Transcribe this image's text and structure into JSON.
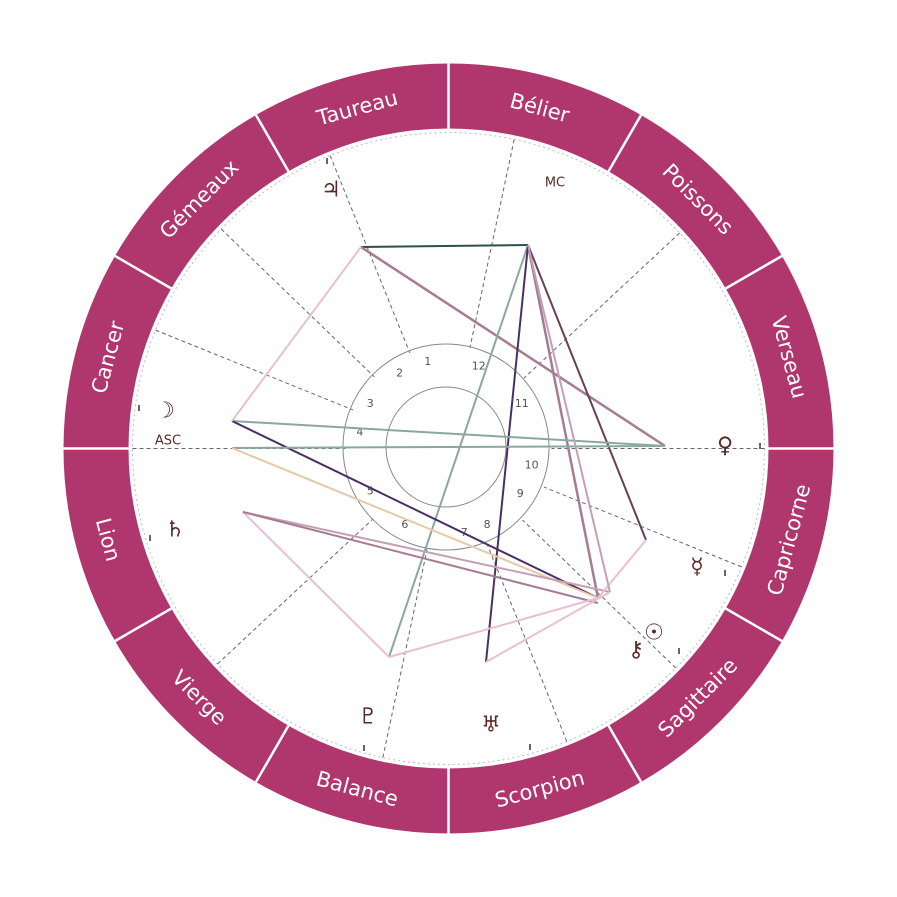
{
  "colors": {
    "ring": "#b0366e",
    "ring_divider": "#ffffff",
    "cusp": "#666666",
    "inner_circle": "#888888",
    "glyph": "#5a2a2a"
  },
  "signs": [
    {
      "name": "Bélier"
    },
    {
      "name": "Poissons"
    },
    {
      "name": "Verseau"
    },
    {
      "name": "Capricorne"
    },
    {
      "name": "Sagittaire"
    },
    {
      "name": "Scorpion"
    },
    {
      "name": "Balance"
    },
    {
      "name": "Vierge"
    },
    {
      "name": "Lion"
    },
    {
      "name": "Cancer"
    },
    {
      "name": "Gémeaux"
    },
    {
      "name": "Taureau"
    }
  ],
  "houses": [
    "1",
    "2",
    "3",
    "4",
    "5",
    "6",
    "7",
    "8",
    "9",
    "10",
    "11",
    "12"
  ],
  "angles": {
    "asc": "ASC",
    "mc": "MC"
  },
  "planets": [
    {
      "name": "jupiter",
      "glyph": "♃"
    },
    {
      "name": "moon",
      "glyph": "☽"
    },
    {
      "name": "saturn",
      "glyph": "♄"
    },
    {
      "name": "venus",
      "glyph": "♀"
    },
    {
      "name": "mercury",
      "glyph": "☿"
    },
    {
      "name": "sun",
      "glyph": "☉"
    },
    {
      "name": "chiron",
      "glyph": "⚷"
    },
    {
      "name": "uranus",
      "glyph": "♅"
    },
    {
      "name": "pluto",
      "glyph": "♇"
    }
  ],
  "aspect_colors": [
    "#2f4f4f",
    "#a77c92",
    "#6b4050",
    "#8aa89e",
    "#4a2f66",
    "#e8c0d0",
    "#e8c8a8",
    "#c4a0b6"
  ]
}
